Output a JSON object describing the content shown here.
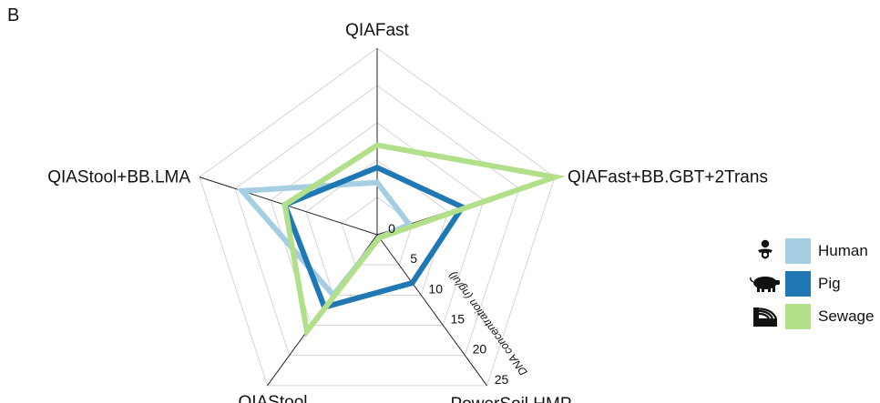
{
  "panel_label": "B",
  "chart_data": {
    "type": "radar",
    "axes": [
      "QIAFast",
      "QIAFast+BB.GBT+2Trans",
      "PowerSoil.HMP",
      "QIAStool",
      "QIAStool+BB.LMA"
    ],
    "rlim": [
      0,
      25
    ],
    "radial_ticks": [
      0,
      5,
      10,
      15,
      20,
      25
    ],
    "radial_axis_label": "DNA concentration (ng/ul)",
    "grid": true,
    "legend_position": "right",
    "series": [
      {
        "name": "Human",
        "values": [
          7,
          4.5,
          0.5,
          10,
          19
        ],
        "color": "#a6cee3",
        "icon": "baby-icon"
      },
      {
        "name": "Pig",
        "values": [
          9,
          12,
          8,
          12,
          13
        ],
        "color": "#1f78b4",
        "icon": "pig-icon"
      },
      {
        "name": "Sewage",
        "values": [
          12,
          25,
          0.5,
          16,
          13
        ],
        "color": "#b2df8a",
        "icon": "sewage-icon"
      }
    ]
  }
}
